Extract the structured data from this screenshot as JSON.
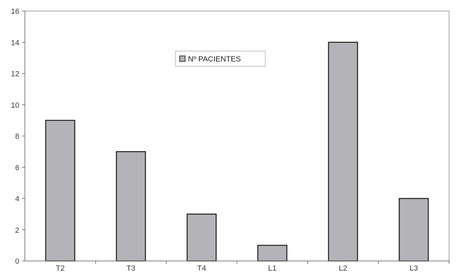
{
  "chart_data": {
    "type": "bar",
    "categories": [
      "T2",
      "T3",
      "T4",
      "L1",
      "L2",
      "L3"
    ],
    "series": [
      {
        "name": "Nº PACIENTES",
        "values": [
          9,
          7,
          3,
          1,
          14,
          4
        ]
      }
    ],
    "title": "",
    "xlabel": "",
    "ylabel": "",
    "ylim": [
      0,
      16
    ],
    "yticks": [
      0,
      2,
      4,
      6,
      8,
      10,
      12,
      14,
      16
    ],
    "grid": false,
    "legend_position": "top-center",
    "colors": {
      "bar_fill": "#b4b4b8",
      "bar_stroke": "#1a1a1a",
      "axis": "#6f6f6f",
      "frame": "#9a9a9a",
      "legend_border": "#b8b8b8"
    }
  }
}
